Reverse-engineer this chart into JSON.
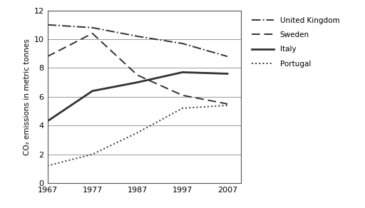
{
  "years": [
    1967,
    1977,
    1987,
    1997,
    2007
  ],
  "united_kingdom": [
    11.0,
    10.8,
    10.2,
    9.7,
    8.8
  ],
  "sweden": [
    8.8,
    10.4,
    7.5,
    6.1,
    5.5
  ],
  "italy": [
    4.3,
    6.4,
    7.0,
    7.7,
    7.6
  ],
  "portugal": [
    1.2,
    2.0,
    3.5,
    5.2,
    5.4
  ],
  "ylabel": "CO₂ emissions in metric tonnes",
  "ylim": [
    0,
    12
  ],
  "xlim": [
    1967,
    2010
  ],
  "yticks": [
    0,
    2,
    4,
    6,
    8,
    10,
    12
  ],
  "xticks": [
    1967,
    1977,
    1987,
    1997,
    2007
  ],
  "legend_labels": [
    "United Kingdom",
    "Sweden",
    "Italy",
    "Portugal"
  ],
  "line_color": "#333333",
  "bg_color": "#ffffff",
  "grid_color": "#999999"
}
